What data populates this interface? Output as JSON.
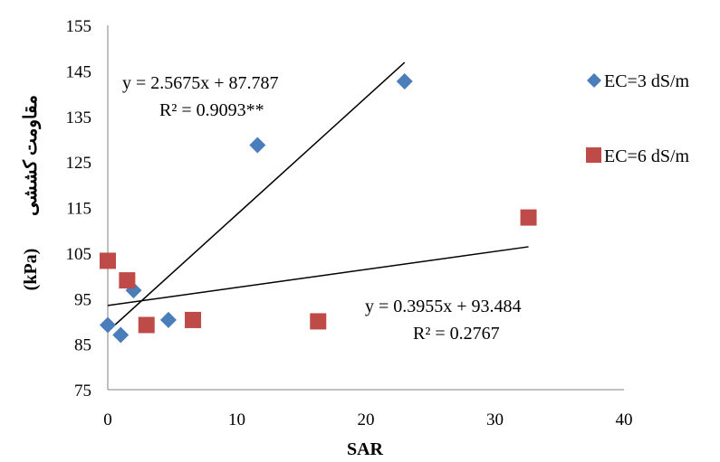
{
  "chart_data": {
    "type": "scatter",
    "xlabel": "SAR",
    "ylabel_unit": "(kPa)",
    "ylabel_text": "مقاومت کششی",
    "xlim": [
      0,
      40
    ],
    "ylim": [
      75,
      155
    ],
    "x_ticks": [
      "0",
      "10",
      "20",
      "30",
      "40"
    ],
    "y_ticks": [
      "75",
      "85",
      "95",
      "105",
      "115",
      "125",
      "135",
      "145",
      "155"
    ],
    "grid": false,
    "legend_position": "right",
    "series": [
      {
        "name": "EC=3 dS/m",
        "marker": "diamond",
        "color": "#4a7ebb",
        "points": [
          {
            "x": 0.0,
            "y": 89.2
          },
          {
            "x": 1.0,
            "y": 87.0
          },
          {
            "x": 2.0,
            "y": 96.8
          },
          {
            "x": 4.7,
            "y": 90.3
          },
          {
            "x": 11.6,
            "y": 128.7
          },
          {
            "x": 23.0,
            "y": 142.7
          }
        ],
        "trendline": {
          "slope": 2.5675,
          "intercept": 87.787,
          "x_range": [
            0.5,
            23.0
          ],
          "equation": "y = 2.5675x + 87.787",
          "r2": "R² = 0.9093**"
        }
      },
      {
        "name": "EC=6 dS/m",
        "marker": "square",
        "color": "#be4b48",
        "points": [
          {
            "x": 0.0,
            "y": 103.3
          },
          {
            "x": 1.5,
            "y": 99.0
          },
          {
            "x": 3.0,
            "y": 89.2
          },
          {
            "x": 6.6,
            "y": 90.3
          },
          {
            "x": 16.3,
            "y": 90.0
          },
          {
            "x": 32.6,
            "y": 112.8
          }
        ],
        "trendline": {
          "slope": 0.3955,
          "intercept": 93.484,
          "x_range": [
            0.0,
            32.6
          ],
          "equation": "y = 0.3955x + 93.484",
          "r2": "R² = 0.2767"
        }
      }
    ]
  },
  "colors": {
    "axis": "#808080",
    "trendline": "#000000"
  }
}
